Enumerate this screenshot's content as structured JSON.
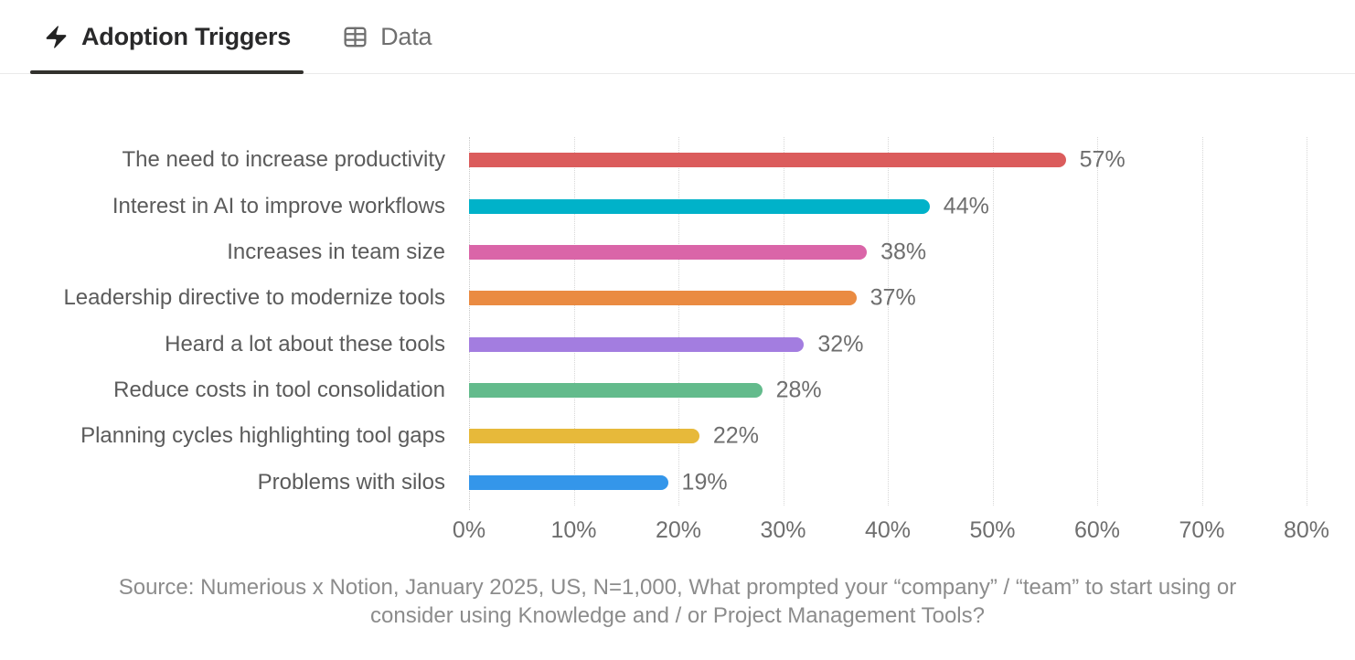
{
  "tabs": [
    {
      "label": "Adoption Triggers",
      "icon": "lightning-bolt-icon",
      "active": true
    },
    {
      "label": "Data",
      "icon": "table-icon",
      "active": false
    }
  ],
  "chart_data": {
    "type": "bar",
    "orientation": "horizontal",
    "title": "",
    "xlabel": "",
    "ylabel": "",
    "categories": [
      "The need to increase productivity",
      "Interest in AI to improve workflows",
      "Increases in team size",
      "Leadership directive to modernize tools",
      "Heard a lot about these tools",
      "Reduce costs in tool consolidation",
      "Planning cycles highlighting tool gaps",
      "Problems with silos"
    ],
    "values": [
      57,
      44,
      38,
      37,
      32,
      28,
      22,
      19
    ],
    "value_labels": [
      "57%",
      "44%",
      "38%",
      "37%",
      "32%",
      "28%",
      "22%",
      "19%"
    ],
    "bar_colors": [
      "#db5c5c",
      "#00b2c9",
      "#da65a8",
      "#ea8b42",
      "#a37de0",
      "#63bb8c",
      "#e7b93a",
      "#3496ea"
    ],
    "xlim": [
      0,
      80
    ],
    "x_ticks": [
      "0%",
      "10%",
      "20%",
      "30%",
      "40%",
      "50%",
      "60%",
      "70%",
      "80%"
    ],
    "grid": "vertical-dotted",
    "legend": "none"
  },
  "source": {
    "line1": "Source: Numerious x Notion, January 2025, US, N=1,000, What prompted your “company” / “team” to start using or",
    "line2": "consider using Knowledge and / or Project Management Tools?"
  },
  "colors": {
    "active_tab_text": "#29292a",
    "active_tab_underline": "#32312d",
    "inactive_tab_text": "#6f6f6f",
    "category_label": "#5b5b5b",
    "value_label": "#6e6e6e",
    "gridline": "#d7d7d7",
    "source_text": "#8c8c8c",
    "tab_border": "#eaeaea"
  }
}
